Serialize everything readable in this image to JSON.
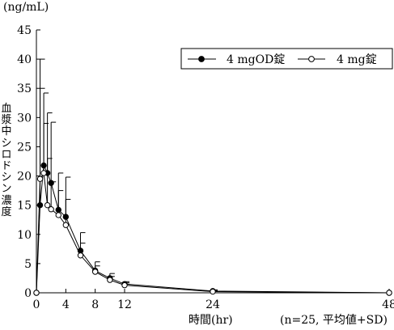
{
  "chart_data": {
    "type": "line",
    "unit_label": "(ng/mL)",
    "ylabel": "血漿中シロドシン濃度",
    "xlabel": "時間(hr)",
    "note": "(n=25, 平均値+SD)",
    "xlim": [
      0,
      48
    ],
    "ylim": [
      0,
      45
    ],
    "xticks": [
      0,
      4,
      8,
      12,
      24,
      48
    ],
    "yticks": [
      0,
      5,
      10,
      15,
      20,
      25,
      30,
      35,
      40,
      45
    ],
    "legend_position": "top-right",
    "series": [
      {
        "name": "4 mgOD錠",
        "marker": "filled-circle",
        "color": "#000000",
        "x": [
          0,
          0.5,
          1,
          1.5,
          2,
          3,
          4,
          6,
          8,
          10,
          12,
          24,
          48
        ],
        "y": [
          0,
          15.0,
          21.8,
          20.5,
          18.8,
          14.2,
          13.0,
          7.2,
          3.8,
          2.5,
          1.5,
          0.3,
          0
        ],
        "sd_upper": [
          0,
          35.0,
          34.2,
          30.8,
          29.2,
          20.5,
          19.8,
          10.3,
          5.3,
          3.3,
          1.9,
          0.5,
          0
        ]
      },
      {
        "name": "4 mg錠",
        "marker": "open-circle",
        "color": "#ffffff",
        "x": [
          0,
          0.5,
          1,
          1.5,
          2,
          3,
          4,
          6,
          8,
          10,
          12,
          24,
          48
        ],
        "y": [
          0,
          19.5,
          20.5,
          15.0,
          14.3,
          13.3,
          11.6,
          6.4,
          3.6,
          2.2,
          1.3,
          0.2,
          0
        ],
        "sd_upper": [
          0,
          40.0,
          29.0,
          23.0,
          19.0,
          17.5,
          16.0,
          8.5,
          4.6,
          2.8,
          1.7,
          0.4,
          0
        ]
      }
    ]
  }
}
